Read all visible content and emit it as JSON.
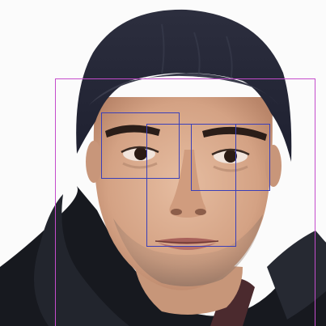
{
  "image": {
    "subject": "man-wearing-knit-beanie",
    "colors": {
      "background": "#fbfbfb",
      "skin": "#d9ab8e",
      "beanie": "#2a2c3b",
      "jacket": "#17191f",
      "face_box": "#c44ccc",
      "feature_box": "#3a3fb8"
    }
  },
  "detections": {
    "face": {
      "label": ""
    },
    "left_eye": {
      "label": ""
    },
    "right_eye": {
      "label": ""
    },
    "nose_mouth": {
      "label": ""
    }
  }
}
